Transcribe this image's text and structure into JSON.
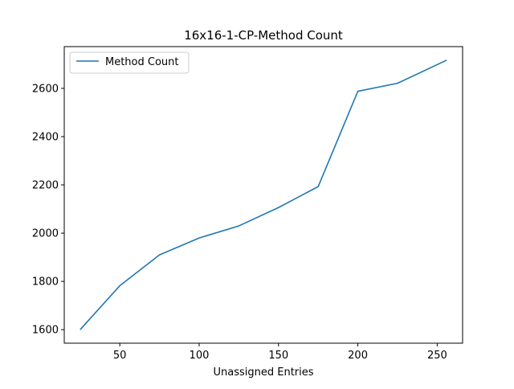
{
  "chart_data": {
    "type": "line",
    "title": "16x16-1-CP-Method Count",
    "xlabel": "Unassigned Entries",
    "ylabel": "",
    "xlim": [
      15,
      266
    ],
    "ylim": [
      1544,
      2773
    ],
    "xticks": [
      50,
      100,
      150,
      200,
      250
    ],
    "yticks": [
      1600,
      1800,
      2000,
      2200,
      2400,
      2600
    ],
    "grid": false,
    "legend_position": "upper-left",
    "series": [
      {
        "name": "Method Count",
        "color": "#1f77b4",
        "x": [
          25,
          50,
          75,
          100,
          125,
          150,
          175,
          200,
          225,
          256
        ],
        "y": [
          1600,
          1782,
          1910,
          1980,
          2030,
          2106,
          2193,
          2588,
          2621,
          2717
        ]
      }
    ]
  }
}
